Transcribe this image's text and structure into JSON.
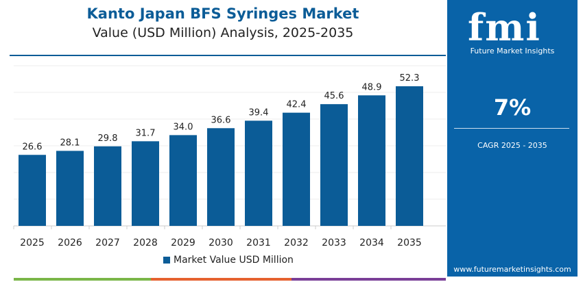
{
  "title": "Kanto Japan BFS Syringes Market",
  "subtitle": "Value (USD Million) Analysis, 2025-2035",
  "sidebar": {
    "brand": "fmi",
    "brand_name": "Future Market Insights",
    "cagr_value": "7%",
    "cagr_label": "CAGR 2025 - 2035",
    "url": "www.futuremarketinsights.com"
  },
  "colors": {
    "bar": "#0b5c97",
    "sidebar": "#0963a8",
    "strip": [
      "#7ab648",
      "#e5612f",
      "#7a3f97"
    ]
  },
  "chart_data": {
    "type": "bar",
    "categories": [
      "2025",
      "2026",
      "2027",
      "2028",
      "2029",
      "2030",
      "2031",
      "2032",
      "2033",
      "2034",
      "2035"
    ],
    "series": [
      {
        "name": "Market Value USD Million",
        "values": [
          26.6,
          28.1,
          29.8,
          31.7,
          34.0,
          36.6,
          39.4,
          42.4,
          45.6,
          48.9,
          52.3
        ]
      }
    ],
    "ylim": [
      0,
      60
    ],
    "grid": true,
    "legend": "bottom"
  }
}
